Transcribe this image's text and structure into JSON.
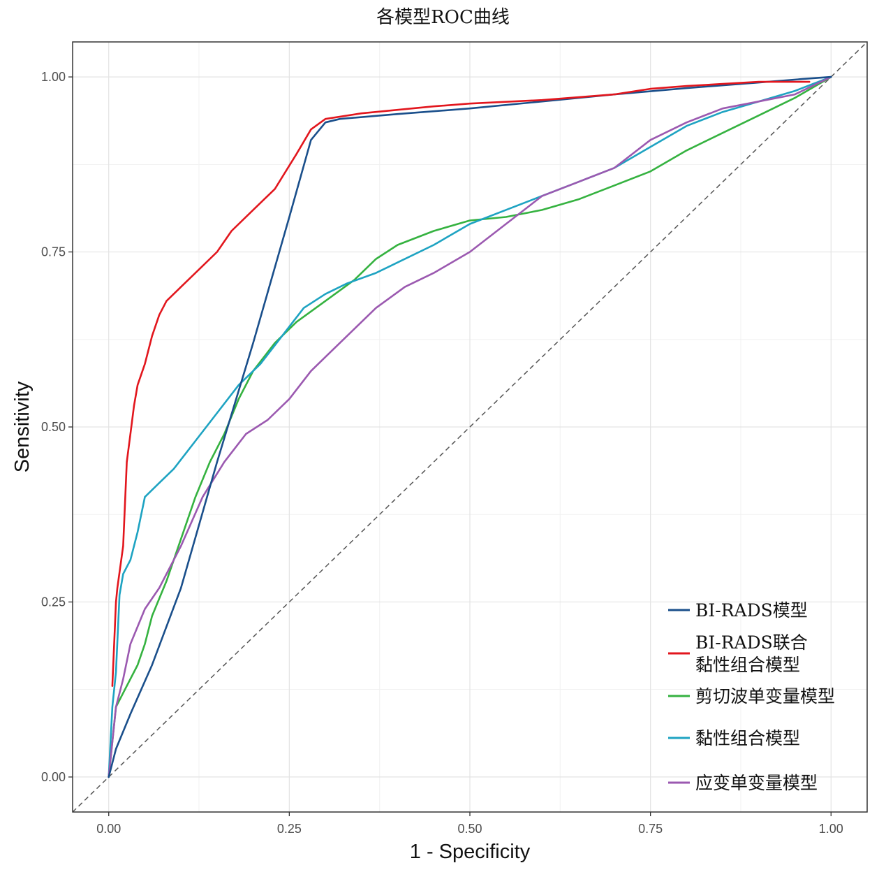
{
  "chart_data": {
    "type": "line",
    "title": "各模型ROC曲线",
    "xlabel": "1 - Specificity",
    "ylabel": "Sensitivity",
    "xlim": [
      -0.05,
      1.05
    ],
    "ylim": [
      -0.05,
      1.05
    ],
    "x_ticks": [
      0,
      0.25,
      0.5,
      0.75,
      1
    ],
    "x_tick_labels": [
      "0.00",
      "0.25",
      "0.50",
      "0.75",
      "1.00"
    ],
    "y_ticks": [
      0,
      0.25,
      0.5,
      0.75,
      1
    ],
    "y_tick_labels": [
      "0.00",
      "0.25",
      "0.50",
      "0.75",
      "1.00"
    ],
    "grid": true,
    "legend_position": "bottom-right",
    "reference_line": {
      "style": "dashed",
      "color": "#555555",
      "points": [
        [
          -0.05,
          -0.05
        ],
        [
          1.05,
          1.05
        ]
      ]
    },
    "series": [
      {
        "name": "BI-RADS模型",
        "color": "#1a4f8b",
        "points": [
          [
            0,
            0
          ],
          [
            0.01,
            0.04
          ],
          [
            0.03,
            0.09
          ],
          [
            0.06,
            0.16
          ],
          [
            0.1,
            0.27
          ],
          [
            0.15,
            0.45
          ],
          [
            0.2,
            0.62
          ],
          [
            0.25,
            0.8
          ],
          [
            0.28,
            0.91
          ],
          [
            0.3,
            0.935
          ],
          [
            0.32,
            0.94
          ],
          [
            0.4,
            0.947
          ],
          [
            0.5,
            0.955
          ],
          [
            0.6,
            0.965
          ],
          [
            0.7,
            0.975
          ],
          [
            0.8,
            0.984
          ],
          [
            0.9,
            0.992
          ],
          [
            0.96,
            0.997
          ],
          [
            1,
            1
          ]
        ]
      },
      {
        "name": "BI-RADS联合\n黏性组合模型",
        "color": "#e2161d",
        "points": [
          [
            0.005,
            0.13
          ],
          [
            0.01,
            0.25
          ],
          [
            0.012,
            0.27
          ],
          [
            0.02,
            0.33
          ],
          [
            0.025,
            0.45
          ],
          [
            0.03,
            0.49
          ],
          [
            0.035,
            0.53
          ],
          [
            0.04,
            0.56
          ],
          [
            0.05,
            0.59
          ],
          [
            0.06,
            0.63
          ],
          [
            0.07,
            0.66
          ],
          [
            0.08,
            0.68
          ],
          [
            0.1,
            0.7
          ],
          [
            0.12,
            0.72
          ],
          [
            0.15,
            0.75
          ],
          [
            0.17,
            0.78
          ],
          [
            0.2,
            0.81
          ],
          [
            0.23,
            0.84
          ],
          [
            0.26,
            0.89
          ],
          [
            0.28,
            0.925
          ],
          [
            0.3,
            0.94
          ],
          [
            0.35,
            0.948
          ],
          [
            0.4,
            0.953
          ],
          [
            0.45,
            0.958
          ],
          [
            0.5,
            0.962
          ],
          [
            0.6,
            0.967
          ],
          [
            0.7,
            0.975
          ],
          [
            0.75,
            0.983
          ],
          [
            0.8,
            0.987
          ],
          [
            0.85,
            0.99
          ],
          [
            0.9,
            0.993
          ],
          [
            0.97,
            0.993
          ]
        ]
      },
      {
        "name": "剪切波单变量模型",
        "color": "#35b240",
        "points": [
          [
            0,
            0
          ],
          [
            0.005,
            0.05
          ],
          [
            0.01,
            0.1
          ],
          [
            0.02,
            0.12
          ],
          [
            0.04,
            0.16
          ],
          [
            0.05,
            0.19
          ],
          [
            0.06,
            0.23
          ],
          [
            0.08,
            0.28
          ],
          [
            0.1,
            0.34
          ],
          [
            0.12,
            0.4
          ],
          [
            0.14,
            0.45
          ],
          [
            0.16,
            0.49
          ],
          [
            0.18,
            0.54
          ],
          [
            0.2,
            0.58
          ],
          [
            0.23,
            0.62
          ],
          [
            0.26,
            0.65
          ],
          [
            0.3,
            0.68
          ],
          [
            0.34,
            0.71
          ],
          [
            0.37,
            0.74
          ],
          [
            0.4,
            0.76
          ],
          [
            0.45,
            0.78
          ],
          [
            0.5,
            0.795
          ],
          [
            0.55,
            0.8
          ],
          [
            0.6,
            0.81
          ],
          [
            0.65,
            0.825
          ],
          [
            0.7,
            0.845
          ],
          [
            0.75,
            0.865
          ],
          [
            0.8,
            0.895
          ],
          [
            0.85,
            0.92
          ],
          [
            0.9,
            0.945
          ],
          [
            0.95,
            0.97
          ],
          [
            1,
            1
          ]
        ]
      },
      {
        "name": "黏性组合模型",
        "color": "#1ea3c2",
        "points": [
          [
            0,
            0
          ],
          [
            0.005,
            0.1
          ],
          [
            0.01,
            0.15
          ],
          [
            0.015,
            0.26
          ],
          [
            0.02,
            0.29
          ],
          [
            0.03,
            0.31
          ],
          [
            0.04,
            0.35
          ],
          [
            0.05,
            0.4
          ],
          [
            0.07,
            0.42
          ],
          [
            0.09,
            0.44
          ],
          [
            0.12,
            0.48
          ],
          [
            0.15,
            0.52
          ],
          [
            0.18,
            0.56
          ],
          [
            0.21,
            0.59
          ],
          [
            0.24,
            0.63
          ],
          [
            0.27,
            0.67
          ],
          [
            0.3,
            0.69
          ],
          [
            0.33,
            0.705
          ],
          [
            0.37,
            0.72
          ],
          [
            0.4,
            0.735
          ],
          [
            0.45,
            0.76
          ],
          [
            0.5,
            0.79
          ],
          [
            0.55,
            0.81
          ],
          [
            0.6,
            0.83
          ],
          [
            0.65,
            0.85
          ],
          [
            0.7,
            0.87
          ],
          [
            0.75,
            0.9
          ],
          [
            0.8,
            0.93
          ],
          [
            0.85,
            0.95
          ],
          [
            0.9,
            0.965
          ],
          [
            0.95,
            0.98
          ],
          [
            1,
            1
          ]
        ]
      },
      {
        "name": "应变单变量模型",
        "color": "#9b59b0",
        "points": [
          [
            0,
            0
          ],
          [
            0.005,
            0.05
          ],
          [
            0.01,
            0.1
          ],
          [
            0.02,
            0.14
          ],
          [
            0.03,
            0.19
          ],
          [
            0.05,
            0.24
          ],
          [
            0.07,
            0.27
          ],
          [
            0.1,
            0.33
          ],
          [
            0.13,
            0.4
          ],
          [
            0.16,
            0.45
          ],
          [
            0.19,
            0.49
          ],
          [
            0.22,
            0.51
          ],
          [
            0.25,
            0.54
          ],
          [
            0.28,
            0.58
          ],
          [
            0.31,
            0.61
          ],
          [
            0.34,
            0.64
          ],
          [
            0.37,
            0.67
          ],
          [
            0.41,
            0.7
          ],
          [
            0.45,
            0.72
          ],
          [
            0.5,
            0.75
          ],
          [
            0.55,
            0.79
          ],
          [
            0.6,
            0.83
          ],
          [
            0.65,
            0.85
          ],
          [
            0.7,
            0.87
          ],
          [
            0.75,
            0.91
          ],
          [
            0.8,
            0.935
          ],
          [
            0.85,
            0.955
          ],
          [
            0.9,
            0.965
          ],
          [
            0.95,
            0.975
          ],
          [
            1,
            1
          ]
        ]
      }
    ]
  }
}
